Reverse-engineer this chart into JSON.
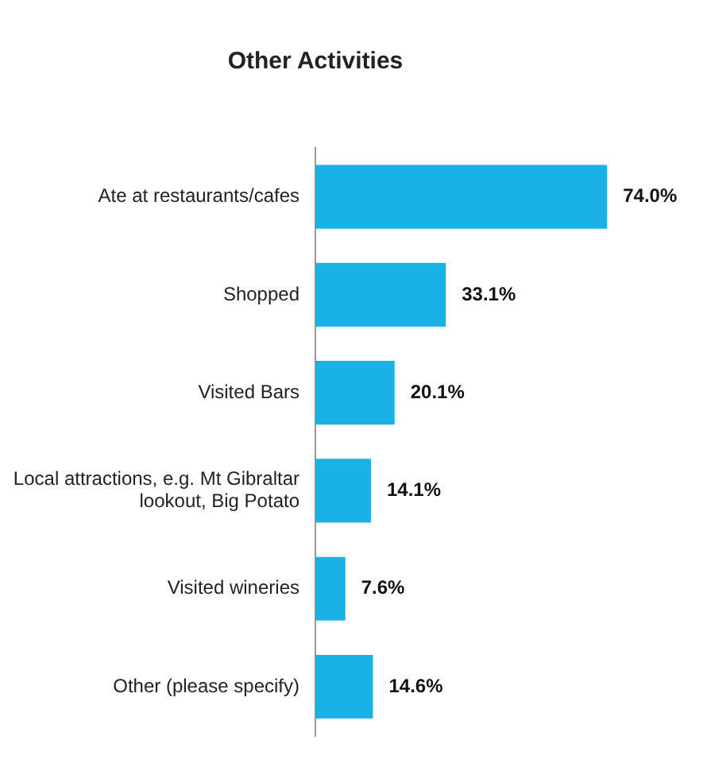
{
  "chart_data": {
    "type": "bar",
    "orientation": "horizontal",
    "title": "Other Activities",
    "categories": [
      "Ate at restaurants/cafes",
      "Shopped",
      "Visited Bars",
      "Local attractions, e.g. Mt Gibraltar lookout, Big Potato",
      "Visited wineries",
      "Other (please specify)"
    ],
    "values": [
      74.0,
      33.1,
      20.1,
      14.1,
      7.6,
      14.6
    ],
    "value_labels": [
      "74.0%",
      "33.1%",
      "20.1%",
      "14.1%",
      "7.6%",
      "14.6%"
    ],
    "color": "#1ab0e8",
    "grid": false,
    "legend": false
  }
}
